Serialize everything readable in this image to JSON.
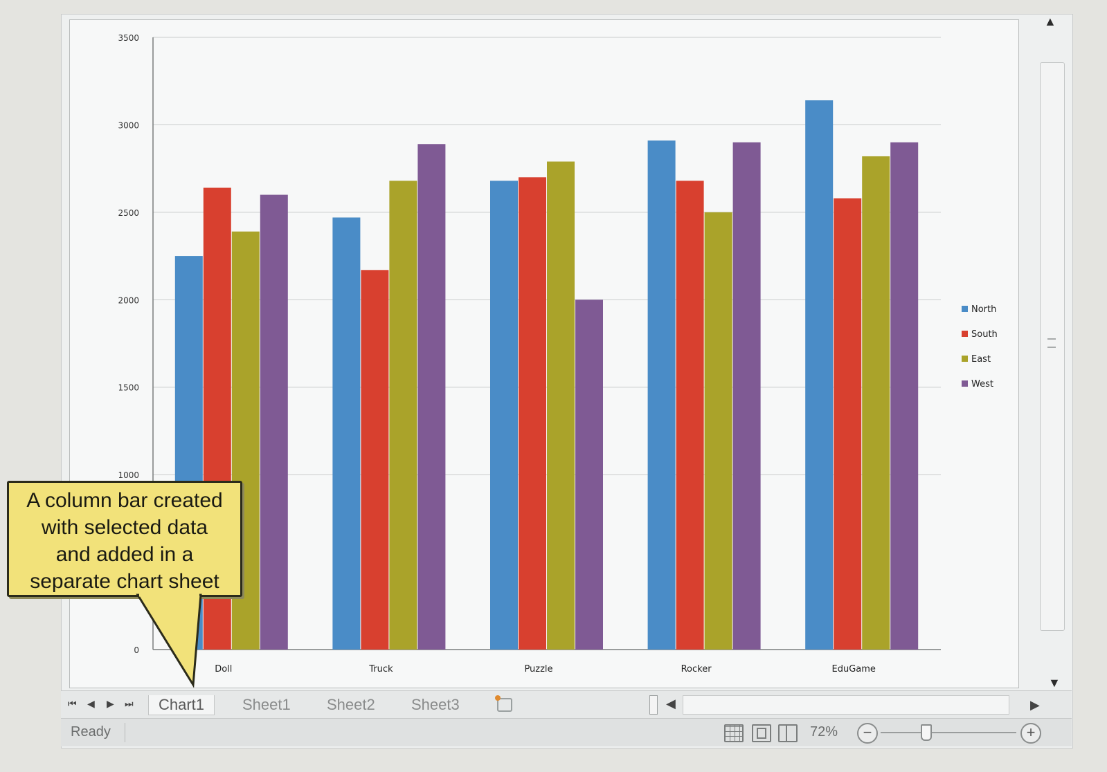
{
  "chart_data": {
    "type": "bar",
    "categories": [
      "Doll",
      "Truck",
      "Puzzle",
      "Rocker",
      "EduGame"
    ],
    "series": [
      {
        "name": "North",
        "values": [
          2250,
          2470,
          2680,
          2910,
          3140
        ],
        "color": "#4a8cc7"
      },
      {
        "name": "South",
        "values": [
          2640,
          2170,
          2700,
          2680,
          2580
        ],
        "color": "#d8402f"
      },
      {
        "name": "East",
        "values": [
          2390,
          2680,
          2790,
          2500,
          2820
        ],
        "color": "#aaa32a"
      },
      {
        "name": "West",
        "values": [
          2600,
          2890,
          2000,
          2900,
          2900
        ],
        "color": "#7f5a94"
      }
    ],
    "yticks": [
      "0",
      "1000",
      "1500",
      "2000",
      "2500",
      "3000",
      "3500"
    ],
    "ylim": [
      0,
      3500
    ],
    "title": "",
    "xlabel": "",
    "ylabel": "",
    "legend": "right",
    "grid": true
  },
  "callout": {
    "lines": [
      "A column bar created",
      "with selected data",
      "and added in a",
      "separate chart sheet"
    ]
  },
  "sheet_tabs": [
    "Chart1",
    "Sheet1",
    "Sheet2",
    "Sheet3"
  ],
  "active_tab": "Chart1",
  "nav_buttons": {
    "first": "⏮",
    "prev": "◀",
    "next": "▶",
    "last": "⏭"
  },
  "status": {
    "ready": "Ready",
    "zoom": "72%",
    "zoom_out": "−",
    "zoom_in": "+"
  }
}
